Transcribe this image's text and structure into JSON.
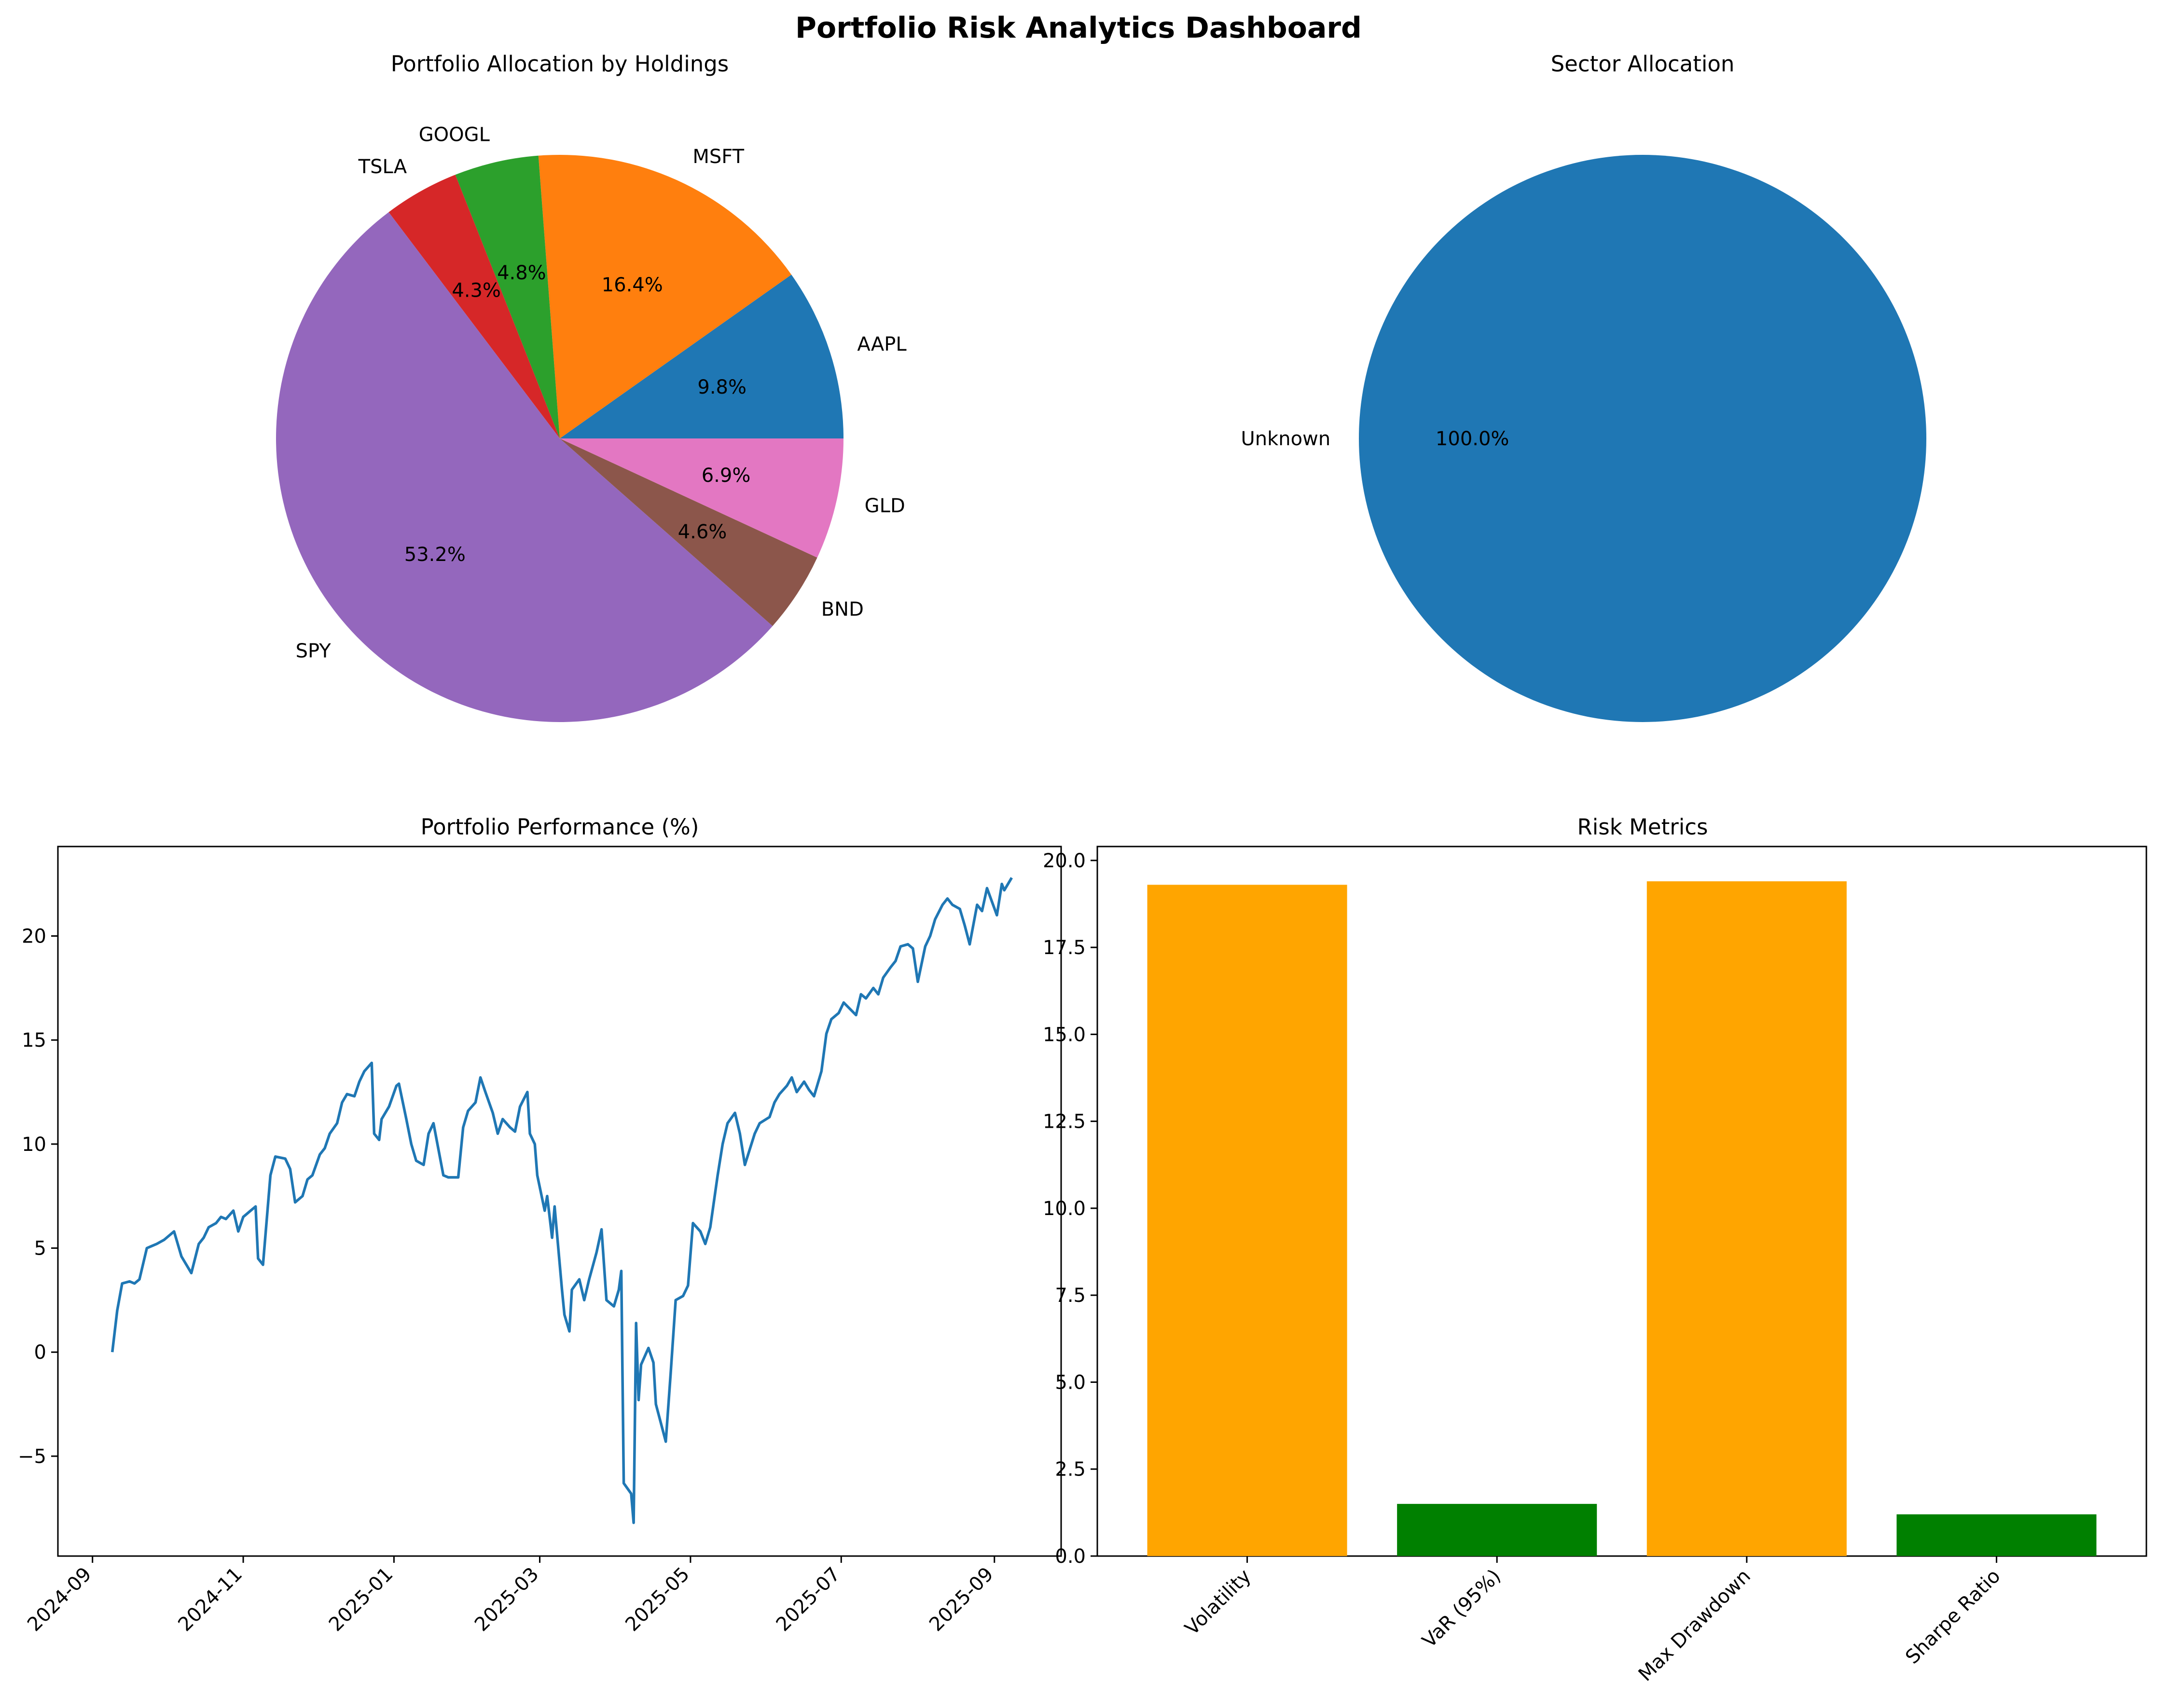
{
  "dashboard": {
    "title": "Portfolio Risk Analytics Dashboard"
  },
  "chart_data": [
    {
      "type": "pie",
      "title": "Portfolio Allocation by Holdings",
      "labels": [
        "AAPL",
        "MSFT",
        "GOOGL",
        "TSLA",
        "SPY",
        "BND",
        "GLD"
      ],
      "values": [
        9.8,
        16.4,
        4.8,
        4.3,
        53.2,
        4.6,
        6.9
      ],
      "value_labels": [
        "9.8%",
        "16.4%",
        "4.8%",
        "4.3%",
        "53.2%",
        "4.6%",
        "6.9%"
      ],
      "colors": [
        "#1f77b4",
        "#ff7f0e",
        "#2ca02c",
        "#d62728",
        "#9467bd",
        "#8c564b",
        "#e377c2"
      ]
    },
    {
      "type": "pie",
      "title": "Sector Allocation",
      "labels": [
        "Unknown"
      ],
      "values": [
        100.0
      ],
      "value_labels": [
        "100.0%"
      ],
      "colors": [
        "#1f77b4"
      ]
    },
    {
      "type": "line",
      "title": "Portfolio Performance (%)",
      "xlabel": "",
      "ylabel": "",
      "xlim": [
        "2024-08-18",
        "2025-09-28"
      ],
      "ylim": [
        -9.8,
        24.3
      ],
      "x_ticks": [
        "2024-09",
        "2024-11",
        "2025-01",
        "2025-03",
        "2025-05",
        "2025-07",
        "2025-09"
      ],
      "y_ticks": [
        "−5",
        "0",
        "5",
        "10",
        "15",
        "20"
      ],
      "y_tick_values": [
        -5,
        0,
        5,
        10,
        15,
        20
      ],
      "color": "#1f77b4",
      "points": [
        [
          "2024-09-09",
          0.0
        ],
        [
          "2024-09-11",
          2.0
        ],
        [
          "2024-09-13",
          3.3
        ],
        [
          "2024-09-16",
          3.4
        ],
        [
          "2024-09-18",
          3.3
        ],
        [
          "2024-09-20",
          3.5
        ],
        [
          "2024-09-23",
          5.0
        ],
        [
          "2024-09-25",
          5.1
        ],
        [
          "2024-09-27",
          5.2
        ],
        [
          "2024-09-30",
          5.4
        ],
        [
          "2024-10-02",
          5.6
        ],
        [
          "2024-10-04",
          5.8
        ],
        [
          "2024-10-07",
          4.6
        ],
        [
          "2024-10-09",
          4.2
        ],
        [
          "2024-10-11",
          3.8
        ],
        [
          "2024-10-14",
          5.2
        ],
        [
          "2024-10-16",
          5.5
        ],
        [
          "2024-10-18",
          6.0
        ],
        [
          "2024-10-21",
          6.2
        ],
        [
          "2024-10-23",
          6.5
        ],
        [
          "2024-10-25",
          6.4
        ],
        [
          "2024-10-28",
          6.8
        ],
        [
          "2024-10-30",
          5.8
        ],
        [
          "2024-11-01",
          6.5
        ],
        [
          "2024-11-04",
          6.8
        ],
        [
          "2024-11-06",
          7.0
        ],
        [
          "2024-11-07",
          4.5
        ],
        [
          "2024-11-09",
          4.2
        ],
        [
          "2024-11-12",
          8.5
        ],
        [
          "2024-11-14",
          9.4
        ],
        [
          "2024-11-18",
          9.3
        ],
        [
          "2024-11-20",
          8.8
        ],
        [
          "2024-11-22",
          7.2
        ],
        [
          "2024-11-25",
          7.5
        ],
        [
          "2024-11-27",
          8.3
        ],
        [
          "2024-11-29",
          8.5
        ],
        [
          "2024-12-02",
          9.5
        ],
        [
          "2024-12-04",
          9.8
        ],
        [
          "2024-12-06",
          10.5
        ],
        [
          "2024-12-09",
          11.0
        ],
        [
          "2024-12-11",
          12.0
        ],
        [
          "2024-12-13",
          12.4
        ],
        [
          "2024-12-16",
          12.3
        ],
        [
          "2024-12-18",
          13.0
        ],
        [
          "2024-12-20",
          13.5
        ],
        [
          "2024-12-23",
          13.9
        ],
        [
          "2024-12-24",
          10.5
        ],
        [
          "2024-12-26",
          10.2
        ],
        [
          "2024-12-27",
          11.2
        ],
        [
          "2024-12-30",
          11.8
        ],
        [
          "2025-01-02",
          12.8
        ],
        [
          "2025-01-03",
          12.9
        ],
        [
          "2025-01-06",
          11.2
        ],
        [
          "2025-01-08",
          10.0
        ],
        [
          "2025-01-10",
          9.2
        ],
        [
          "2025-01-13",
          9.0
        ],
        [
          "2025-01-15",
          10.5
        ],
        [
          "2025-01-17",
          11.0
        ],
        [
          "2025-01-21",
          8.5
        ],
        [
          "2025-01-23",
          8.4
        ],
        [
          "2025-01-27",
          8.4
        ],
        [
          "2025-01-29",
          10.8
        ],
        [
          "2025-01-31",
          11.6
        ],
        [
          "2025-02-03",
          12.0
        ],
        [
          "2025-02-05",
          13.2
        ],
        [
          "2025-02-07",
          12.5
        ],
        [
          "2025-02-10",
          11.5
        ],
        [
          "2025-02-12",
          10.5
        ],
        [
          "2025-02-14",
          11.2
        ],
        [
          "2025-02-17",
          10.8
        ],
        [
          "2025-02-19",
          10.6
        ],
        [
          "2025-02-21",
          11.8
        ],
        [
          "2025-02-24",
          12.5
        ],
        [
          "2025-02-25",
          10.5
        ],
        [
          "2025-02-27",
          10.0
        ],
        [
          "2025-02-28",
          8.5
        ],
        [
          "2025-03-03",
          6.8
        ],
        [
          "2025-03-04",
          7.5
        ],
        [
          "2025-03-06",
          5.5
        ],
        [
          "2025-03-07",
          7.0
        ],
        [
          "2025-03-10",
          3.0
        ],
        [
          "2025-03-11",
          1.8
        ],
        [
          "2025-03-13",
          1.0
        ],
        [
          "2025-03-14",
          3.0
        ],
        [
          "2025-03-17",
          3.5
        ],
        [
          "2025-03-19",
          2.5
        ],
        [
          "2025-03-21",
          3.5
        ],
        [
          "2025-03-24",
          4.8
        ],
        [
          "2025-03-26",
          5.9
        ],
        [
          "2025-03-28",
          2.5
        ],
        [
          "2025-03-31",
          2.2
        ],
        [
          "2025-04-02",
          3.0
        ],
        [
          "2025-04-03",
          3.9
        ],
        [
          "2025-04-04",
          -6.3
        ],
        [
          "2025-04-07",
          -6.8
        ],
        [
          "2025-04-08",
          -8.2
        ],
        [
          "2025-04-09",
          1.4
        ],
        [
          "2025-04-10",
          -2.3
        ],
        [
          "2025-04-11",
          -0.6
        ],
        [
          "2025-04-14",
          0.2
        ],
        [
          "2025-04-16",
          -0.5
        ],
        [
          "2025-04-17",
          -2.5
        ],
        [
          "2025-04-21",
          -4.3
        ],
        [
          "2025-04-23",
          -1.0
        ],
        [
          "2025-04-25",
          2.5
        ],
        [
          "2025-04-28",
          2.7
        ],
        [
          "2025-04-30",
          3.2
        ],
        [
          "2025-05-02",
          6.2
        ],
        [
          "2025-05-05",
          5.8
        ],
        [
          "2025-05-07",
          5.2
        ],
        [
          "2025-05-09",
          6.0
        ],
        [
          "2025-05-12",
          8.5
        ],
        [
          "2025-05-14",
          10.0
        ],
        [
          "2025-05-16",
          11.0
        ],
        [
          "2025-05-19",
          11.5
        ],
        [
          "2025-05-21",
          10.5
        ],
        [
          "2025-05-23",
          9.0
        ],
        [
          "2025-05-27",
          10.5
        ],
        [
          "2025-05-29",
          11.0
        ],
        [
          "2025-06-02",
          11.3
        ],
        [
          "2025-06-04",
          12.0
        ],
        [
          "2025-06-06",
          12.4
        ],
        [
          "2025-06-09",
          12.8
        ],
        [
          "2025-06-11",
          13.2
        ],
        [
          "2025-06-13",
          12.5
        ],
        [
          "2025-06-16",
          13.0
        ],
        [
          "2025-06-18",
          12.6
        ],
        [
          "2025-06-20",
          12.3
        ],
        [
          "2025-06-23",
          13.5
        ],
        [
          "2025-06-25",
          15.3
        ],
        [
          "2025-06-27",
          16.0
        ],
        [
          "2025-06-30",
          16.3
        ],
        [
          "2025-07-02",
          16.8
        ],
        [
          "2025-07-07",
          16.2
        ],
        [
          "2025-07-09",
          17.2
        ],
        [
          "2025-07-11",
          17.0
        ],
        [
          "2025-07-14",
          17.5
        ],
        [
          "2025-07-16",
          17.2
        ],
        [
          "2025-07-18",
          18.0
        ],
        [
          "2025-07-21",
          18.5
        ],
        [
          "2025-07-23",
          18.8
        ],
        [
          "2025-07-25",
          19.5
        ],
        [
          "2025-07-28",
          19.6
        ],
        [
          "2025-07-30",
          19.4
        ],
        [
          "2025-08-01",
          17.8
        ],
        [
          "2025-08-04",
          19.5
        ],
        [
          "2025-08-06",
          20.0
        ],
        [
          "2025-08-08",
          20.8
        ],
        [
          "2025-08-11",
          21.5
        ],
        [
          "2025-08-13",
          21.8
        ],
        [
          "2025-08-15",
          21.5
        ],
        [
          "2025-08-18",
          21.3
        ],
        [
          "2025-08-20",
          20.5
        ],
        [
          "2025-08-22",
          19.6
        ],
        [
          "2025-08-25",
          21.5
        ],
        [
          "2025-08-27",
          21.2
        ],
        [
          "2025-08-29",
          22.3
        ],
        [
          "2025-09-02",
          21.0
        ],
        [
          "2025-09-04",
          22.5
        ],
        [
          "2025-09-05",
          22.2
        ],
        [
          "2025-09-08",
          22.8
        ]
      ]
    },
    {
      "type": "bar",
      "title": "Risk Metrics",
      "xlabel": "",
      "ylabel": "",
      "categories": [
        "Volatility",
        "VaR (95%)",
        "Max Drawdown",
        "Sharpe Ratio"
      ],
      "values": [
        19.3,
        1.5,
        19.4,
        1.2
      ],
      "colors": [
        "#ffa500",
        "#008000",
        "#ffa500",
        "#008000"
      ],
      "ylim": [
        0,
        20.4
      ],
      "y_ticks": [
        "0.0",
        "2.5",
        "5.0",
        "7.5",
        "10.0",
        "12.5",
        "15.0",
        "17.5",
        "20.0"
      ],
      "y_tick_values": [
        0,
        2.5,
        5,
        7.5,
        10,
        12.5,
        15,
        17.5,
        20
      ]
    }
  ]
}
